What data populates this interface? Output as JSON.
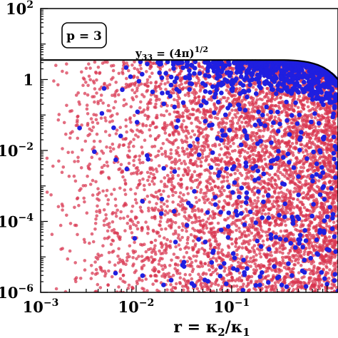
{
  "chart_data": {
    "type": "scatter",
    "title": "",
    "xlabel": "r = κ₂/κ₁",
    "ylabel": "",
    "xscale": "log",
    "yscale": "log",
    "xlim": [
      0.001,
      1.3
    ],
    "ylim": [
      1e-06,
      100
    ],
    "x_ticks": [
      {
        "value": 0.001,
        "base": "10",
        "exp": "−3"
      },
      {
        "value": 0.01,
        "base": "10",
        "exp": "−2"
      },
      {
        "value": 0.1,
        "base": "10",
        "exp": "−1"
      }
    ],
    "y_ticks": [
      {
        "value": 100,
        "base": "10",
        "exp": "2"
      },
      {
        "value": 1,
        "base": "1",
        "exp": ""
      },
      {
        "value": 0.01,
        "base": "10",
        "exp": "−2"
      },
      {
        "value": 0.0001,
        "base": "10",
        "exp": "−4"
      },
      {
        "value": 1e-06,
        "base": "10",
        "exp": "−6"
      }
    ],
    "inset_label": "p = 3",
    "reference_line": {
      "label_main": "y",
      "label_sub": "33",
      "label_rest": " = (4π)",
      "label_sup": "1/2",
      "value": 3.545
    },
    "series_colors": {
      "red": "#d8344f",
      "blue": "#1f1fe0"
    },
    "grid": false,
    "legend": "none"
  }
}
